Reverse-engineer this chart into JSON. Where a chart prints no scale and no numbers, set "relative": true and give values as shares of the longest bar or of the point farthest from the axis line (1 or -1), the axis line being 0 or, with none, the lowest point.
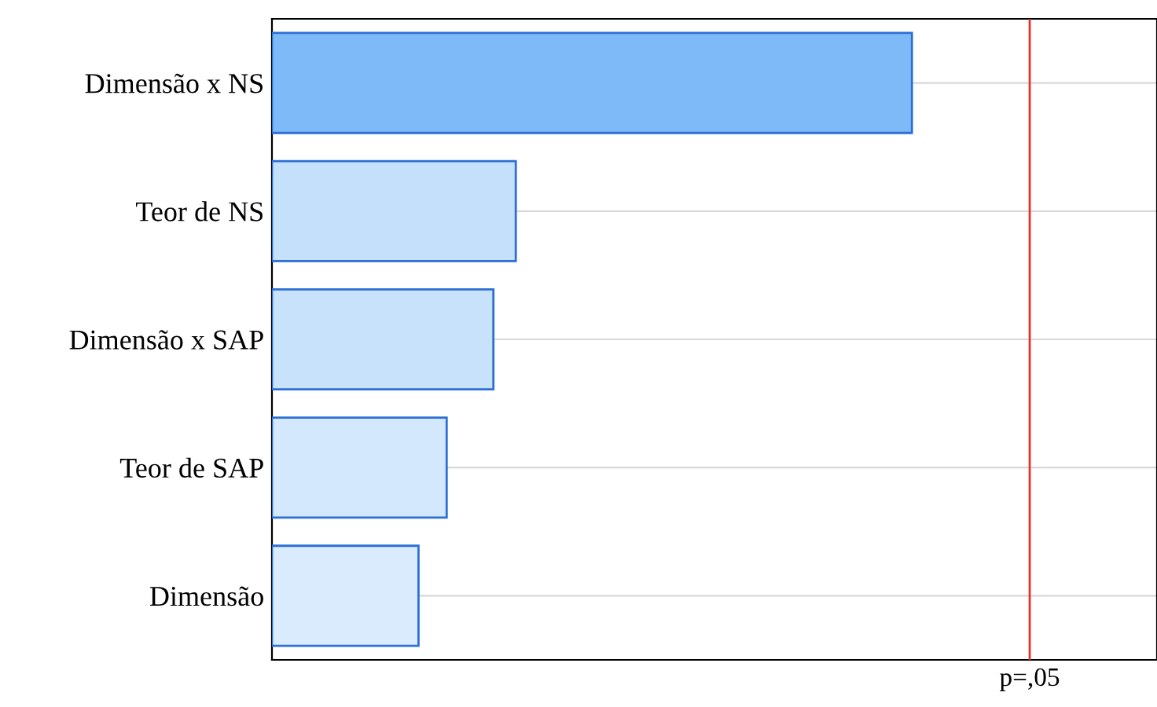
{
  "chart_data": {
    "type": "bar",
    "orientation": "horizontal",
    "relative": true,
    "categories": [
      "Dimensão x NS",
      "Teor de NS",
      "Dimensão x SAP",
      "Teor de SAP",
      "Dimensão"
    ],
    "values": [
      1,
      0.381,
      0.346,
      0.273,
      0.229
    ],
    "colors": [
      "#7dbaf7",
      "#c4e0fb",
      "#c8e2fb",
      "#d3e8fc",
      "#d9ebfc"
    ],
    "ref_lines": [
      {
        "axis": "x",
        "value": 1.184,
        "label": "p=,05",
        "color": "#e8302a"
      }
    ],
    "grid": "y"
  }
}
